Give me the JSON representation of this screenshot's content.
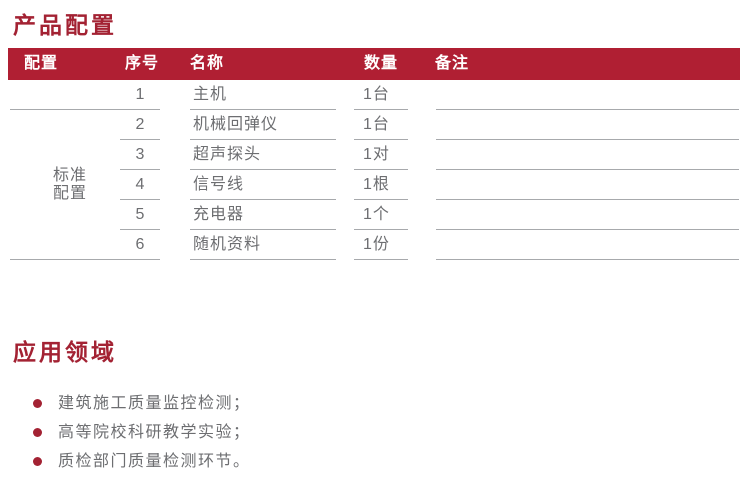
{
  "sections": {
    "product": {
      "title": "产品配置"
    },
    "applications": {
      "title": "应用领域"
    }
  },
  "table": {
    "headers": {
      "config": "配置",
      "index": "序号",
      "name": "名称",
      "quantity": "数量",
      "note": "备注"
    },
    "config_group_label": "标准\n配置",
    "rows": [
      {
        "index": "1",
        "name": "主机",
        "quantity": "1台",
        "note": ""
      },
      {
        "index": "2",
        "name": "机械回弹仪",
        "quantity": "1台",
        "note": ""
      },
      {
        "index": "3",
        "name": "超声探头",
        "quantity": "1对",
        "note": ""
      },
      {
        "index": "4",
        "name": "信号线",
        "quantity": "1根",
        "note": ""
      },
      {
        "index": "5",
        "name": "充电器",
        "quantity": "1个",
        "note": ""
      },
      {
        "index": "6",
        "name": "随机资料",
        "quantity": "1份",
        "note": ""
      }
    ]
  },
  "applications": {
    "items": [
      "建筑施工质量监控检测；",
      "高等院校科研教学实验；",
      "质检部门质量检测环节。"
    ]
  },
  "colors": {
    "accent_red": "#b01f33",
    "title_red": "#a32233",
    "body_text_gray": "#6d6e71",
    "line_gray": "#a7a9ac"
  }
}
